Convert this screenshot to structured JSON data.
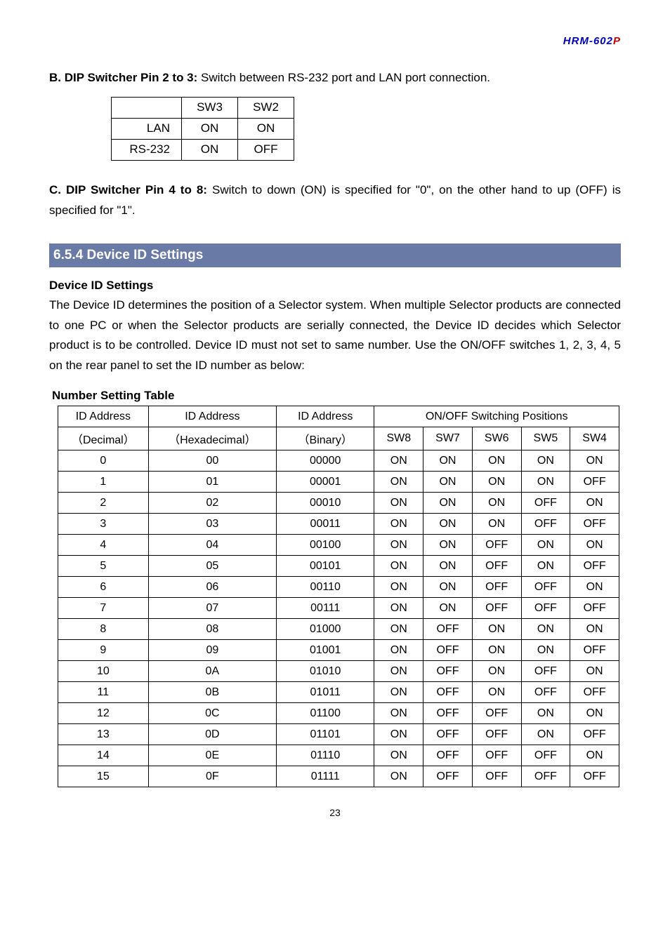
{
  "header": {
    "blue": "HRM-602",
    "red": "P"
  },
  "section_b": {
    "title": "B. DIP Switcher Pin 2 to 3: ",
    "text": "Switch between RS-232 port and LAN port connection."
  },
  "dip_table": {
    "headers": [
      "",
      "SW3",
      "SW2"
    ],
    "rows": [
      [
        "LAN",
        "ON",
        "ON"
      ],
      [
        "RS-232",
        "ON",
        "OFF"
      ]
    ]
  },
  "section_c": {
    "title": "C. DIP Switcher Pin 4 to 8: ",
    "text": "Switch to down (ON) is specified for \"0\", on the other hand to up (OFF) is specified for \"1\"."
  },
  "section_bar": "6.5.4 Device ID Settings",
  "device_id": {
    "heading": "Device ID Settings",
    "text": "The Device ID determines the position of a Selector system. When multiple Selector products are connected to one PC or when the Selector products are serially connected, the Device ID decides which Selector product is to be controlled. Device ID must not set to same number. Use the ON/OFF switches 1, 2, 3, 4, 5 on the rear panel to set the ID number as below:"
  },
  "number_table": {
    "heading": "Number Setting Table",
    "top_headers": [
      "ID Address",
      "ID Address",
      "ID Address",
      "ON/OFF Switching Positions"
    ],
    "sub_headers": [
      "（Decimal）",
      "（Hexadecimal）",
      "（Binary）",
      "SW8",
      "SW7",
      "SW6",
      "SW5",
      "SW4"
    ],
    "rows": [
      [
        "0",
        "00",
        "00000",
        "ON",
        "ON",
        "ON",
        "ON",
        "ON"
      ],
      [
        "1",
        "01",
        "00001",
        "ON",
        "ON",
        "ON",
        "ON",
        "OFF"
      ],
      [
        "2",
        "02",
        "00010",
        "ON",
        "ON",
        "ON",
        "OFF",
        "ON"
      ],
      [
        "3",
        "03",
        "00011",
        "ON",
        "ON",
        "ON",
        "OFF",
        "OFF"
      ],
      [
        "4",
        "04",
        "00100",
        "ON",
        "ON",
        "OFF",
        "ON",
        "ON"
      ],
      [
        "5",
        "05",
        "00101",
        "ON",
        "ON",
        "OFF",
        "ON",
        "OFF"
      ],
      [
        "6",
        "06",
        "00110",
        "ON",
        "ON",
        "OFF",
        "OFF",
        "ON"
      ],
      [
        "7",
        "07",
        "00111",
        "ON",
        "ON",
        "OFF",
        "OFF",
        "OFF"
      ],
      [
        "8",
        "08",
        "01000",
        "ON",
        "OFF",
        "ON",
        "ON",
        "ON"
      ],
      [
        "9",
        "09",
        "01001",
        "ON",
        "OFF",
        "ON",
        "ON",
        "OFF"
      ],
      [
        "10",
        "0A",
        "01010",
        "ON",
        "OFF",
        "ON",
        "OFF",
        "ON"
      ],
      [
        "11",
        "0B",
        "01011",
        "ON",
        "OFF",
        "ON",
        "OFF",
        "OFF"
      ],
      [
        "12",
        "0C",
        "01100",
        "ON",
        "OFF",
        "OFF",
        "ON",
        "ON"
      ],
      [
        "13",
        "0D",
        "01101",
        "ON",
        "OFF",
        "OFF",
        "ON",
        "OFF"
      ],
      [
        "14",
        "0E",
        "01110",
        "ON",
        "OFF",
        "OFF",
        "OFF",
        "ON"
      ],
      [
        "15",
        "0F",
        "01111",
        "ON",
        "OFF",
        "OFF",
        "OFF",
        "OFF"
      ]
    ]
  },
  "page_number": "23"
}
